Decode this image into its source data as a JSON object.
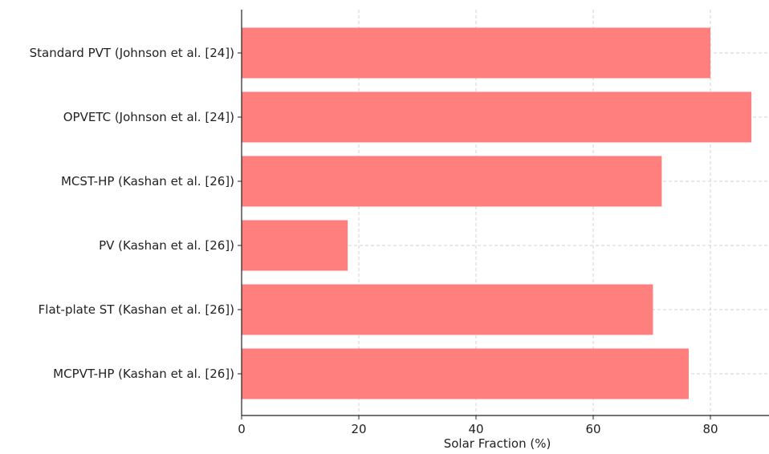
{
  "chart_data": {
    "type": "bar",
    "orientation": "horizontal",
    "categories": [
      "Standard PVT (Johnson et al. [24])",
      "OPVETC (Johnson et al. [24])",
      "MCST-HP (Kashan et al. [26])",
      "PV (Kashan et al. [26])",
      "Flat-plate ST (Kashan et al. [26])",
      "MCPVT-HP (Kashan et al. [26])"
    ],
    "values": [
      80,
      87,
      71.7,
      18.1,
      70.2,
      76.3
    ],
    "title": "",
    "xlabel": "Solar Fraction (%)",
    "ylabel": "",
    "xlim": [
      0,
      90
    ],
    "xticks": [
      0,
      20,
      40,
      60,
      80
    ],
    "grid": true,
    "legend": "none",
    "bar_color": "#ff7f7f",
    "grid_color": "#d0d0d0",
    "axis_color": "#222222"
  }
}
